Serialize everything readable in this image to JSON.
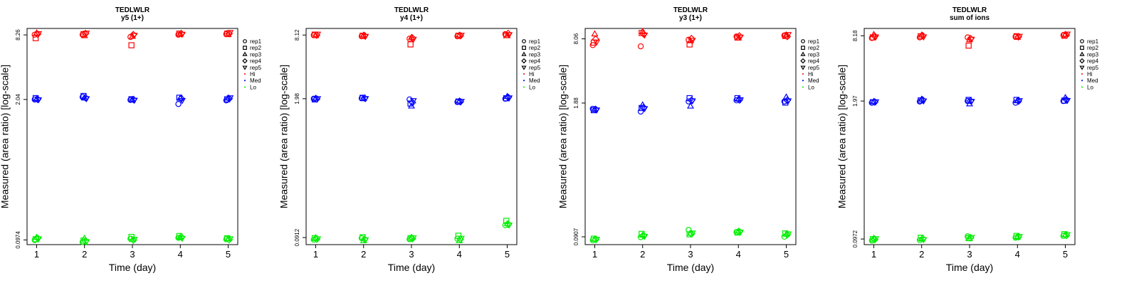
{
  "colors": {
    "Hi": "#ff0000",
    "Med": "#0000ff",
    "Lo": "#00ee00"
  },
  "chart_data": [
    {
      "type": "scatter",
      "title": "TEDLWLR",
      "subtitle": "y5 (1+)",
      "xlabel": "Time (day)",
      "ylabel": "Measured (area ratio) [log-scale]",
      "log_y": true,
      "x_ticks": [
        "1",
        "2",
        "3",
        "4",
        "5"
      ],
      "y_ticks": [
        {
          "value": 8.26,
          "label": "8.26"
        },
        {
          "value": 2.04,
          "label": "2.04"
        },
        {
          "value": 0.0974,
          "label": "0.0974"
        }
      ],
      "ylim": [
        0.088,
        9.5
      ],
      "legend_position": "right",
      "legend": [
        {
          "label": "rep1",
          "symbol": "circle"
        },
        {
          "label": "rep2",
          "symbol": "square"
        },
        {
          "label": "rep3",
          "symbol": "triangle"
        },
        {
          "label": "rep4",
          "symbol": "diamond"
        },
        {
          "label": "rep5",
          "symbol": "triangle-down"
        },
        {
          "label": "Hi",
          "symbol": "dot",
          "color": "Hi"
        },
        {
          "label": "Med",
          "symbol": "dot",
          "color": "Med"
        },
        {
          "label": "Lo",
          "symbol": "dot",
          "color": "Lo"
        }
      ],
      "series": [
        {
          "level": "Hi",
          "values": [
            [
              8.3,
              7.7,
              8.6,
              8.4,
              8.5
            ],
            [
              8.3,
              8.4,
              8.1,
              8.5,
              8.6
            ],
            [
              7.9,
              6.6,
              8.0,
              8.3,
              8.2
            ],
            [
              8.3,
              8.5,
              8.4,
              8.5,
              8.4
            ],
            [
              8.4,
              8.5,
              8.3,
              8.5,
              8.7
            ]
          ]
        },
        {
          "level": "Med",
          "values": [
            [
              2.04,
              2.1,
              2.06,
              2.05,
              2.03
            ],
            [
              2.15,
              2.2,
              2.1,
              2.12,
              2.08
            ],
            [
              2.02,
              2.05,
              2.03,
              2.04,
              2.01
            ],
            [
              1.85,
              2.12,
              2.1,
              2.08,
              2.0
            ],
            [
              2.0,
              2.05,
              2.1,
              2.08,
              2.12
            ]
          ]
        },
        {
          "level": "Lo",
          "values": [
            [
              0.097,
              0.099,
              0.103,
              0.101,
              0.1
            ],
            [
              0.093,
              0.096,
              0.101,
              0.095,
              0.094
            ],
            [
              0.1,
              0.104,
              0.098,
              0.097,
              0.099
            ],
            [
              0.102,
              0.106,
              0.103,
              0.104,
              0.101
            ],
            [
              0.099,
              0.101,
              0.1,
              0.098,
              0.1
            ]
          ]
        }
      ]
    },
    {
      "type": "scatter",
      "title": "TEDLWLR",
      "subtitle": "y4 (1+)",
      "xlabel": "Time (day)",
      "ylabel": "Measured (area ratio) [log-scale]",
      "log_y": true,
      "x_ticks": [
        "1",
        "2",
        "3",
        "4",
        "5"
      ],
      "y_ticks": [
        {
          "value": 8.12,
          "label": "8.12"
        },
        {
          "value": 1.98,
          "label": "1.98"
        },
        {
          "value": 0.0912,
          "label": "0.0912"
        }
      ],
      "ylim": [
        0.078,
        9.4
      ],
      "legend_position": "right",
      "legend": [
        {
          "label": "rep1",
          "symbol": "circle"
        },
        {
          "label": "rep2",
          "symbol": "square"
        },
        {
          "label": "rep3",
          "symbol": "triangle"
        },
        {
          "label": "rep4",
          "symbol": "diamond"
        },
        {
          "label": "rep5",
          "symbol": "triangle-down"
        },
        {
          "label": "Hi",
          "symbol": "dot",
          "color": "Hi"
        },
        {
          "label": "Med",
          "symbol": "dot",
          "color": "Med"
        },
        {
          "label": "Lo",
          "symbol": "dot",
          "color": "Lo"
        }
      ],
      "series": [
        {
          "level": "Hi",
          "values": [
            [
              8.1,
              8.2,
              8.0,
              8.1,
              8.3
            ],
            [
              7.9,
              8.0,
              8.1,
              8.0,
              7.9
            ],
            [
              7.5,
              6.6,
              7.7,
              7.6,
              7.4
            ],
            [
              7.9,
              8.0,
              8.1,
              8.0,
              8.1
            ],
            [
              8.3,
              8.1,
              8.0,
              8.4,
              8.2
            ]
          ]
        },
        {
          "level": "Med",
          "values": [
            [
              1.98,
              1.95,
              2.0,
              1.97,
              1.99
            ],
            [
              2.0,
              2.02,
              1.98,
              2.01,
              1.99
            ],
            [
              1.95,
              1.78,
              1.68,
              1.82,
              1.9
            ],
            [
              1.84,
              1.86,
              1.88,
              1.85,
              1.87
            ],
            [
              1.98,
              2.0,
              2.08,
              2.04,
              2.02
            ]
          ]
        },
        {
          "level": "Lo",
          "values": [
            [
              0.087,
              0.09,
              0.091,
              0.088,
              0.089
            ],
            [
              0.09,
              0.092,
              0.085,
              0.088,
              0.087
            ],
            [
              0.088,
              0.09,
              0.092,
              0.089,
              0.091
            ],
            [
              0.089,
              0.095,
              0.085,
              0.088,
              0.09
            ],
            [
              0.12,
              0.132,
              0.124,
              0.122,
              0.121
            ]
          ]
        }
      ]
    },
    {
      "type": "scatter",
      "title": "TEDLWLR",
      "subtitle": "y3 (1+)",
      "xlabel": "Time (day)",
      "ylabel": "Measured (area ratio) [log-scale]",
      "log_y": true,
      "x_ticks": [
        "1",
        "2",
        "3",
        "4",
        "5"
      ],
      "y_ticks": [
        {
          "value": 8.06,
          "label": "8.06"
        },
        {
          "value": 1.88,
          "label": "1.88"
        },
        {
          "value": 0.0907,
          "label": "0.0907"
        }
      ],
      "ylim": [
        0.076,
        10.2
      ],
      "legend_position": "right",
      "legend": [
        {
          "label": "rep1",
          "symbol": "circle"
        },
        {
          "label": "rep2",
          "symbol": "square"
        },
        {
          "label": "rep3",
          "symbol": "triangle"
        },
        {
          "label": "rep4",
          "symbol": "diamond"
        },
        {
          "label": "rep5",
          "symbol": "triangle-down"
        },
        {
          "label": "Hi",
          "symbol": "dot",
          "color": "Hi"
        },
        {
          "label": "Med",
          "symbol": "dot",
          "color": "Med"
        },
        {
          "label": "Lo",
          "symbol": "dot",
          "color": "Lo"
        }
      ],
      "series": [
        {
          "level": "Hi",
          "values": [
            [
              7.0,
              7.4,
              9.0,
              8.0,
              7.5
            ],
            [
              6.8,
              9.2,
              9.5,
              9.0,
              8.8
            ],
            [
              7.9,
              7.1,
              7.7,
              8.1,
              7.8
            ],
            [
              8.5,
              8.3,
              8.2,
              8.6,
              8.4
            ],
            [
              8.7,
              8.6,
              8.8,
              8.5,
              8.9
            ]
          ]
        },
        {
          "level": "Med",
          "values": [
            [
              1.65,
              1.6,
              1.62,
              1.63,
              1.61
            ],
            [
              1.55,
              1.68,
              1.8,
              1.7,
              1.66
            ],
            [
              1.95,
              2.1,
              1.75,
              2.0,
              1.98
            ],
            [
              2.0,
              2.1,
              2.05,
              2.02,
              2.03
            ],
            [
              1.95,
              1.9,
              2.15,
              2.0,
              1.98
            ]
          ]
        },
        {
          "level": "Lo",
          "values": [
            [
              0.084,
              0.087,
              0.086,
              0.085,
              0.086
            ],
            [
              0.09,
              0.097,
              0.094,
              0.093,
              0.092
            ],
            [
              0.106,
              0.096,
              0.098,
              0.097,
              0.099
            ],
            [
              0.101,
              0.1,
              0.103,
              0.102,
              0.101
            ],
            [
              0.091,
              0.098,
              0.096,
              0.095,
              0.097
            ]
          ]
        }
      ]
    },
    {
      "type": "scatter",
      "title": "TEDLWLR",
      "subtitle": "sum of ions",
      "xlabel": "Time (day)",
      "ylabel": "Measured (area ratio) [log-scale]",
      "log_y": true,
      "x_ticks": [
        "1",
        "2",
        "3",
        "4",
        "5"
      ],
      "y_ticks": [
        {
          "value": 8.18,
          "label": "8.18"
        },
        {
          "value": 1.97,
          "label": "1.97"
        },
        {
          "value": 0.0972,
          "label": "0.0972"
        }
      ],
      "ylim": [
        0.086,
        9.6
      ],
      "legend_position": "right",
      "legend": [
        {
          "label": "rep1",
          "symbol": "circle"
        },
        {
          "label": "rep2",
          "symbol": "square"
        },
        {
          "label": "rep3",
          "symbol": "triangle"
        },
        {
          "label": "rep4",
          "symbol": "diamond"
        },
        {
          "label": "rep5",
          "symbol": "triangle-down"
        },
        {
          "label": "Hi",
          "symbol": "dot",
          "color": "Hi"
        },
        {
          "label": "Med",
          "symbol": "dot",
          "color": "Med"
        },
        {
          "label": "Lo",
          "symbol": "dot",
          "color": "Lo"
        }
      ],
      "series": [
        {
          "level": "Hi",
          "values": [
            [
              7.8,
              7.9,
              8.4,
              8.1,
              8.0
            ],
            [
              7.9,
              8.1,
              8.3,
              8.2,
              8.0
            ],
            [
              7.9,
              6.6,
              7.5,
              7.7,
              7.6
            ],
            [
              8.0,
              8.1,
              7.9,
              8.0,
              8.1
            ],
            [
              8.3,
              8.2,
              8.4,
              8.3,
              8.5
            ]
          ]
        },
        {
          "level": "Med",
          "values": [
            [
              1.9,
              1.92,
              1.95,
              1.93,
              1.94
            ],
            [
              1.95,
              2.0,
              2.05,
              2.02,
              1.98
            ],
            [
              1.97,
              2.02,
              1.85,
              1.98,
              1.96
            ],
            [
              1.9,
              2.02,
              1.98,
              1.97,
              1.99
            ],
            [
              1.97,
              1.99,
              2.12,
              2.03,
              2.0
            ]
          ]
        },
        {
          "level": "Lo",
          "values": [
            [
              0.094,
              0.097,
              0.099,
              0.096,
              0.098
            ],
            [
              0.095,
              0.1,
              0.097,
              0.098,
              0.096
            ],
            [
              0.103,
              0.099,
              0.098,
              0.1,
              0.101
            ],
            [
              0.1,
              0.104,
              0.101,
              0.102,
              0.103
            ],
            [
              0.104,
              0.108,
              0.106,
              0.105,
              0.107
            ]
          ]
        }
      ]
    }
  ]
}
